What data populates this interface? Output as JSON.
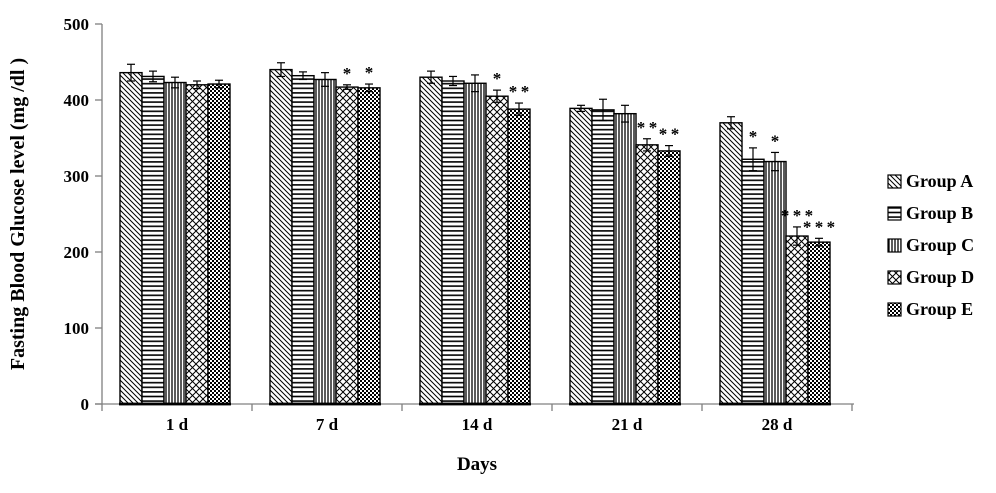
{
  "chart_data": {
    "type": "bar",
    "title": "",
    "xlabel": "Days",
    "ylabel": "Fasting Blood Glucose level (mg /dl )",
    "ylim": [
      0,
      500
    ],
    "yticks": [
      0,
      100,
      200,
      300,
      400,
      500
    ],
    "grid": false,
    "legend_position": "right",
    "bar_fill": "#ffffff",
    "bar_stroke": "#000000",
    "axis_color": "#808080",
    "categories": [
      "1 d",
      "7 d",
      "14 d",
      "21 d",
      "28 d"
    ],
    "series": [
      {
        "name": "Group A",
        "pattern": "diagonal-lines",
        "values": [
          436,
          440,
          430,
          389,
          370
        ],
        "errors": [
          11,
          9,
          8,
          4,
          8
        ],
        "significance": [
          "",
          "",
          "",
          "",
          ""
        ]
      },
      {
        "name": "Group B",
        "pattern": "horizontal-lines",
        "values": [
          431,
          432,
          425,
          387,
          322
        ],
        "errors": [
          7,
          5,
          6,
          14,
          15
        ],
        "significance": [
          "",
          "",
          "",
          "",
          "*"
        ]
      },
      {
        "name": "Group C",
        "pattern": "vertical-lines",
        "values": [
          423,
          427,
          422,
          382,
          319
        ],
        "errors": [
          7,
          9,
          11,
          11,
          12
        ],
        "significance": [
          "",
          "",
          "",
          "",
          "*"
        ]
      },
      {
        "name": "Group D",
        "pattern": "diagonal-crosshatch",
        "values": [
          420,
          417,
          405,
          341,
          221
        ],
        "errors": [
          5,
          3,
          8,
          8,
          12
        ],
        "significance": [
          "",
          "*",
          "*",
          "**",
          "***"
        ]
      },
      {
        "name": "Group E",
        "pattern": "checkerboard",
        "values": [
          421,
          416,
          388,
          333,
          213
        ],
        "errors": [
          5,
          5,
          8,
          7,
          5
        ],
        "significance": [
          "",
          "*",
          "**",
          "**",
          "***"
        ]
      }
    ]
  }
}
